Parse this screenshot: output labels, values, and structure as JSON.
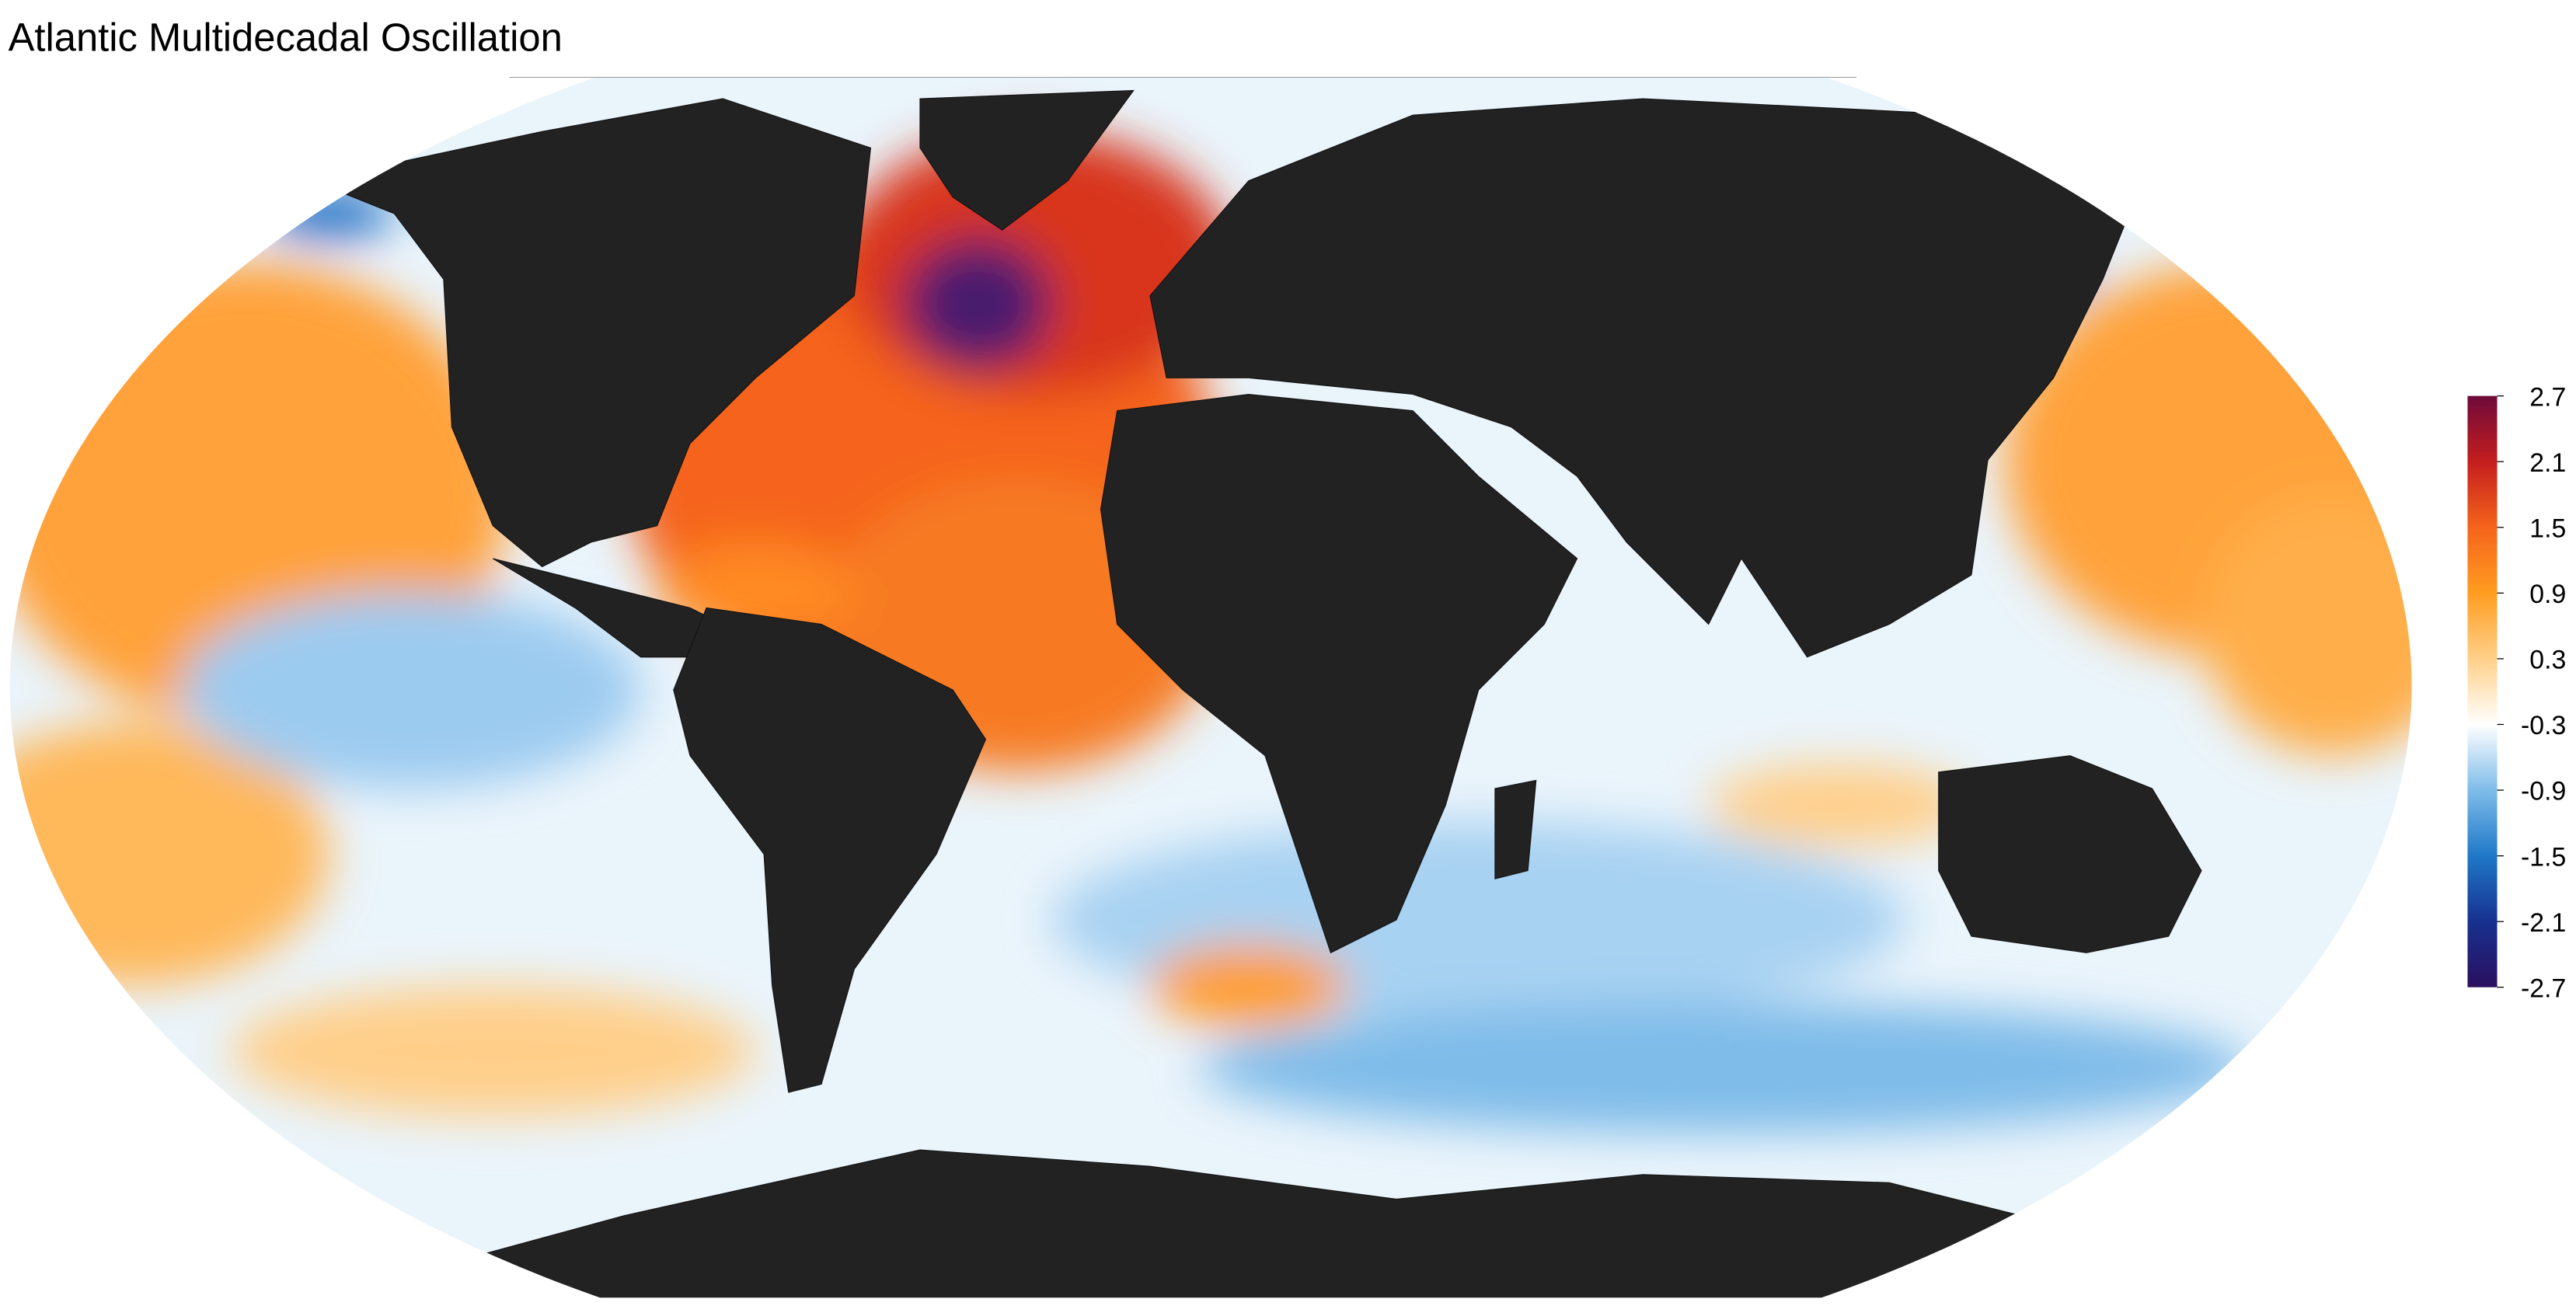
{
  "title": "Atlantic Multidecadal Oscillation",
  "colorbar": {
    "lim": [
      -2.7,
      2.7
    ],
    "ticks": [
      2.7,
      2.1,
      1.5,
      0.9,
      0.3,
      -0.3,
      -0.9,
      -1.5,
      -2.1,
      -2.7
    ],
    "colors": [
      "#2a0f5e",
      "#17318f",
      "#1f78c8",
      "#7fbcea",
      "#ffffff",
      "#ffd08a",
      "#ff9c1f",
      "#f5641c",
      "#c41e1e",
      "#6e0a3a"
    ]
  }
}
